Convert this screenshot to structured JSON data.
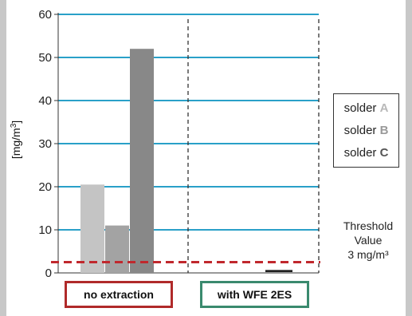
{
  "chart_data": {
    "type": "bar",
    "ylabel_main": "[mg/m",
    "ylabel_sup": "3",
    "ylabel_end": "]",
    "ylim": [
      0,
      60
    ],
    "yticks": [
      0,
      10,
      20,
      30,
      40,
      50,
      60
    ],
    "ytick_labels": [
      "0",
      "10",
      "20",
      "30",
      "40",
      "50",
      "60"
    ],
    "grid": true,
    "groups": [
      {
        "label": "no extraction",
        "label_color": "#b02a2a",
        "bars": [
          {
            "series": "solder A",
            "value": 20.5,
            "color": "#c4c4c4"
          },
          {
            "series": "solder B",
            "value": 11,
            "color": "#a3a3a3"
          },
          {
            "series": "solder C",
            "value": 52,
            "color": "#888888"
          }
        ]
      },
      {
        "label": "with WFE 2ES",
        "label_color": "#3a8a6e",
        "bars": [
          {
            "series": "solder C",
            "value": 0.5,
            "color": "#222222"
          }
        ]
      }
    ],
    "series": [
      {
        "name": "solder ",
        "letter": "A",
        "letter_color": "#b8b8b8"
      },
      {
        "name": "solder ",
        "letter": "B",
        "letter_color": "#9a9a9a"
      },
      {
        "name": "solder ",
        "letter": "C",
        "letter_color": "#555555"
      }
    ],
    "threshold": {
      "value": 2.5,
      "color": "#c0282d",
      "label_line1": "Threshold",
      "label_line2": "Value",
      "label_line3": "3 mg/m³"
    },
    "legend_position": "right"
  },
  "colors": {
    "sidebar": "#c8c8c8",
    "grid": "#2aa0c8",
    "axis": "#333333"
  }
}
